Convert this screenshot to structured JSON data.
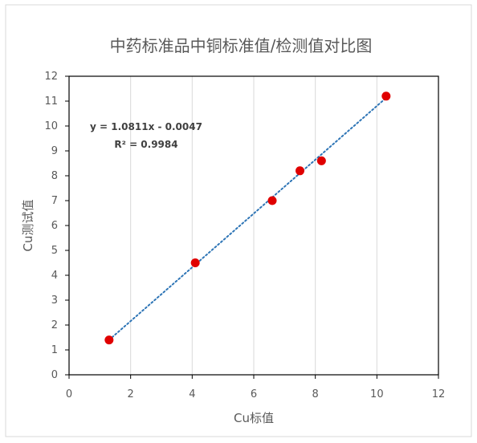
{
  "chart_data": {
    "type": "scatter",
    "title": "中药标准品中铜标准值/检测值对比图",
    "xlabel": "Cu标值",
    "ylabel": "Cu测试值",
    "xlim": [
      0,
      12
    ],
    "ylim": [
      0,
      12
    ],
    "x_ticks": [
      0,
      2,
      4,
      6,
      8,
      10,
      12
    ],
    "y_ticks": [
      0,
      1,
      2,
      3,
      4,
      5,
      6,
      7,
      8,
      9,
      10,
      11,
      12
    ],
    "grid": "vertical",
    "series": [
      {
        "x": [
          1.3,
          4.1,
          6.6,
          7.5,
          8.2,
          10.3
        ],
        "y": [
          1.4,
          4.5,
          7.0,
          8.2,
          8.6,
          11.2
        ],
        "color": "#e00000"
      }
    ],
    "trendline": {
      "style": "dotted",
      "color": "#2e75b6",
      "slope": 1.0811,
      "intercept": -0.0047,
      "x_range": [
        1.3,
        10.3
      ],
      "equation": "y = 1.0811x - 0.0047",
      "r_squared": "R² = 0.9984"
    }
  }
}
